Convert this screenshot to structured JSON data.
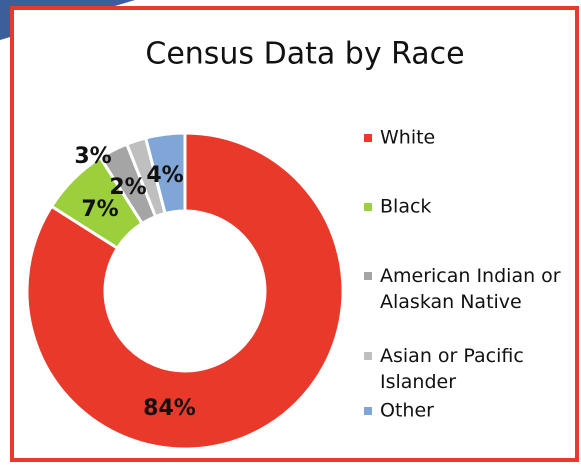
{
  "chart_data": {
    "type": "donut",
    "title": "Census Data by Race",
    "categories": [
      "White",
      "Black",
      "American Indian or Alaskan Native",
      "Asian or Pacific Islander",
      "Other"
    ],
    "values": [
      84,
      7,
      3,
      2,
      4
    ],
    "value_labels": [
      "84%",
      "7%",
      "3%",
      "2%",
      "4%"
    ],
    "colors": [
      "#e8392a",
      "#9bcf3c",
      "#a5a5a5",
      "#bfbfbf",
      "#7fa6d6"
    ],
    "legend": "right"
  }
}
